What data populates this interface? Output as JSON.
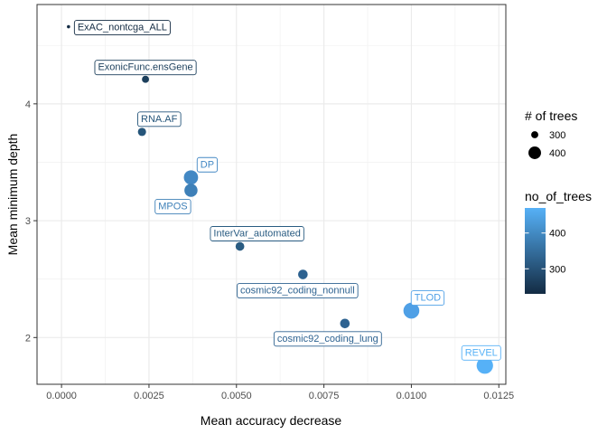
{
  "chart_data": {
    "type": "scatter",
    "xlabel": "Mean accuracy decrease",
    "ylabel": "Mean minimum depth",
    "xlim": [
      -0.0007,
      0.0127
    ],
    "ylim": [
      1.6,
      4.85
    ],
    "x_ticks": [
      0.0,
      0.0025,
      0.005,
      0.0075,
      0.01,
      0.0125
    ],
    "x_tick_labels": [
      "0.0000",
      "0.0025",
      "0.0050",
      "0.0075",
      "0.0100",
      "0.0125"
    ],
    "y_ticks": [
      2,
      3,
      4
    ],
    "y_tick_labels": [
      "2",
      "3",
      "4"
    ],
    "grid": true,
    "points": [
      {
        "label": "ExAC_nontcga_ALL",
        "x": 0.0002,
        "y": 4.66,
        "trees": 230,
        "color": "#132b43",
        "label_color": "#132b43"
      },
      {
        "label": "ExonicFunc.ensGene",
        "x": 0.0024,
        "y": 4.21,
        "trees": 300,
        "color": "#1c3f5c",
        "label_color": "#1c3f5c"
      },
      {
        "label": "RNA.AF",
        "x": 0.0023,
        "y": 3.76,
        "trees": 320,
        "color": "#25557a",
        "label_color": "#25557a"
      },
      {
        "label": "DP",
        "x": 0.0037,
        "y": 3.37,
        "trees": 430,
        "color": "#4388c4",
        "label_color": "#4388c4"
      },
      {
        "label": "MPOS",
        "x": 0.0037,
        "y": 3.26,
        "trees": 410,
        "color": "#3e80b8",
        "label_color": "#3e80b8"
      },
      {
        "label": "InterVar_automated",
        "x": 0.0051,
        "y": 2.78,
        "trees": 330,
        "color": "#2a5c82",
        "label_color": "#2a5c82"
      },
      {
        "label": "cosmic92_coding_nonnull",
        "x": 0.0069,
        "y": 2.54,
        "trees": 345,
        "color": "#2d6290",
        "label_color": "#2d6290"
      },
      {
        "label": "TLOD",
        "x": 0.01,
        "y": 2.23,
        "trees": 460,
        "color": "#4fa0e6",
        "label_color": "#4fa0e6"
      },
      {
        "label": "cosmic92_coding_lung",
        "x": 0.0081,
        "y": 2.12,
        "trees": 345,
        "color": "#2d6290",
        "label_color": "#2d6290"
      },
      {
        "label": "REVEL",
        "x": 0.0121,
        "y": 1.76,
        "trees": 470,
        "color": "#56b1f7",
        "label_color": "#56b1f7"
      }
    ],
    "legend": {
      "size_title": "# of trees",
      "size_entries": [
        {
          "label": "300",
          "value": 300
        },
        {
          "label": "400",
          "value": 400
        }
      ],
      "color_title": "no_of_trees",
      "color_ticks": [
        {
          "label": "400",
          "value": 400
        },
        {
          "label": "300",
          "value": 300
        }
      ],
      "color_range": [
        230,
        470
      ],
      "color_low": "#132b43",
      "color_high": "#56b1f7"
    }
  }
}
